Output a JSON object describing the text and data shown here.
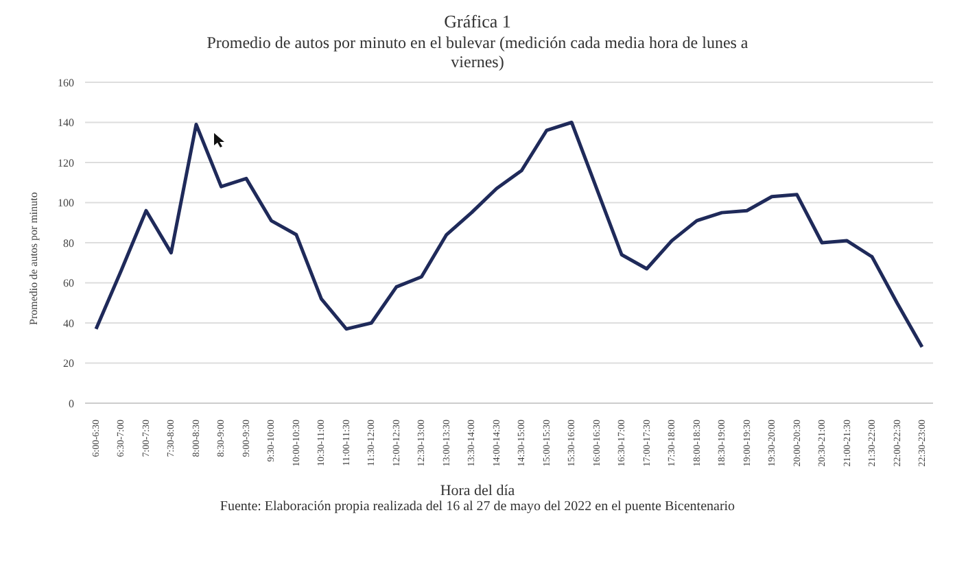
{
  "chart_data": {
    "type": "line",
    "title": "Gráfica 1",
    "subtitle": "Promedio de autos por minuto en el bulevar (medición cada media hora de lunes a viernes)",
    "xlabel": "Hora del día",
    "ylabel": "Promedio de autos por minuto",
    "annotations": [
      "Fuente: Elaboración propia realizada del 16 al 27 de mayo del 2022 en el puente Bicentenario"
    ],
    "categories": [
      "6:00-6:30",
      "6:30-7:00",
      "7:00-7:30",
      "7:30-8:00",
      "8:00-8:30",
      "8:30-9:00",
      "9:00-9:30",
      "9:30-10:00",
      "10:00-10:30",
      "10:30-11:00",
      "11:00-11:30",
      "11:30-12:00",
      "12:00-12:30",
      "12:30-13:00",
      "13:00-13:30",
      "13:30-14:00",
      "14:00-14:30",
      "14:30-15:00",
      "15:00-15:30",
      "15:30-16:00",
      "16:00-16:30",
      "16:30-17:00",
      "17:00-17:30",
      "17:30-18:00",
      "18:00-18:30",
      "18:30-19:00",
      "19:00-19:30",
      "19:30-20:00",
      "20:00-20:30",
      "20:30-21:00",
      "21:00-21:30",
      "21:30-22:00",
      "22:00-22:30",
      "22:30-23:00"
    ],
    "series": [
      {
        "color": "#1f2a5a",
        "values": [
          37,
          66,
          96,
          75,
          139,
          108,
          112,
          91,
          84,
          52,
          37,
          40,
          58,
          63,
          84,
          95,
          107,
          116,
          136,
          140,
          107,
          74,
          67,
          81,
          91,
          95,
          96,
          103,
          104,
          80,
          81,
          73,
          50,
          28
        ]
      }
    ],
    "ylim": [
      0,
      160
    ],
    "yticks": [
      0,
      20,
      40,
      60,
      80,
      100,
      120,
      140,
      160
    ],
    "grid": "y",
    "legend": false,
    "marker": "none",
    "line_style": "solid"
  }
}
